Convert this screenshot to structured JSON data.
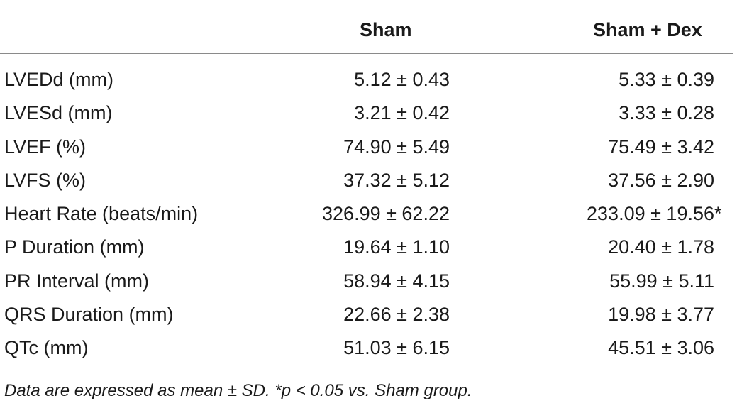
{
  "table": {
    "headers": {
      "label": "",
      "sham": "Sham",
      "sham_dex": "Sham + Dex"
    },
    "rows": [
      {
        "label": "LVEDd (mm)",
        "sham": "5.12 ± 0.43",
        "sham_dex": "5.33 ± 0.39",
        "mark": ""
      },
      {
        "label": "LVESd (mm)",
        "sham": "3.21 ± 0.42",
        "sham_dex": "3.33 ± 0.28",
        "mark": ""
      },
      {
        "label": "LVEF (%)",
        "sham": "74.90 ± 5.49",
        "sham_dex": "75.49 ± 3.42",
        "mark": ""
      },
      {
        "label": "LVFS (%)",
        "sham": "37.32 ± 5.12",
        "sham_dex": "37.56 ± 2.90",
        "mark": ""
      },
      {
        "label": "Heart Rate (beats/min)",
        "sham": "326.99 ± 62.22",
        "sham_dex": "233.09 ± 19.56",
        "mark": "*"
      },
      {
        "label": "P Duration (mm)",
        "sham": "19.64 ± 1.10",
        "sham_dex": "20.40 ± 1.78",
        "mark": ""
      },
      {
        "label": "PR Interval (mm)",
        "sham": "58.94 ± 4.15",
        "sham_dex": "55.99 ± 5.11",
        "mark": ""
      },
      {
        "label": "QRS Duration (mm)",
        "sham": "22.66 ± 2.38",
        "sham_dex": "19.98 ± 3.77",
        "mark": ""
      },
      {
        "label": "QTc (mm)",
        "sham": "51.03 ± 6.15",
        "sham_dex": "45.51 ± 3.06",
        "mark": ""
      }
    ],
    "footnote": "Data are expressed as mean ± SD. *p < 0.05 vs. Sham group."
  }
}
